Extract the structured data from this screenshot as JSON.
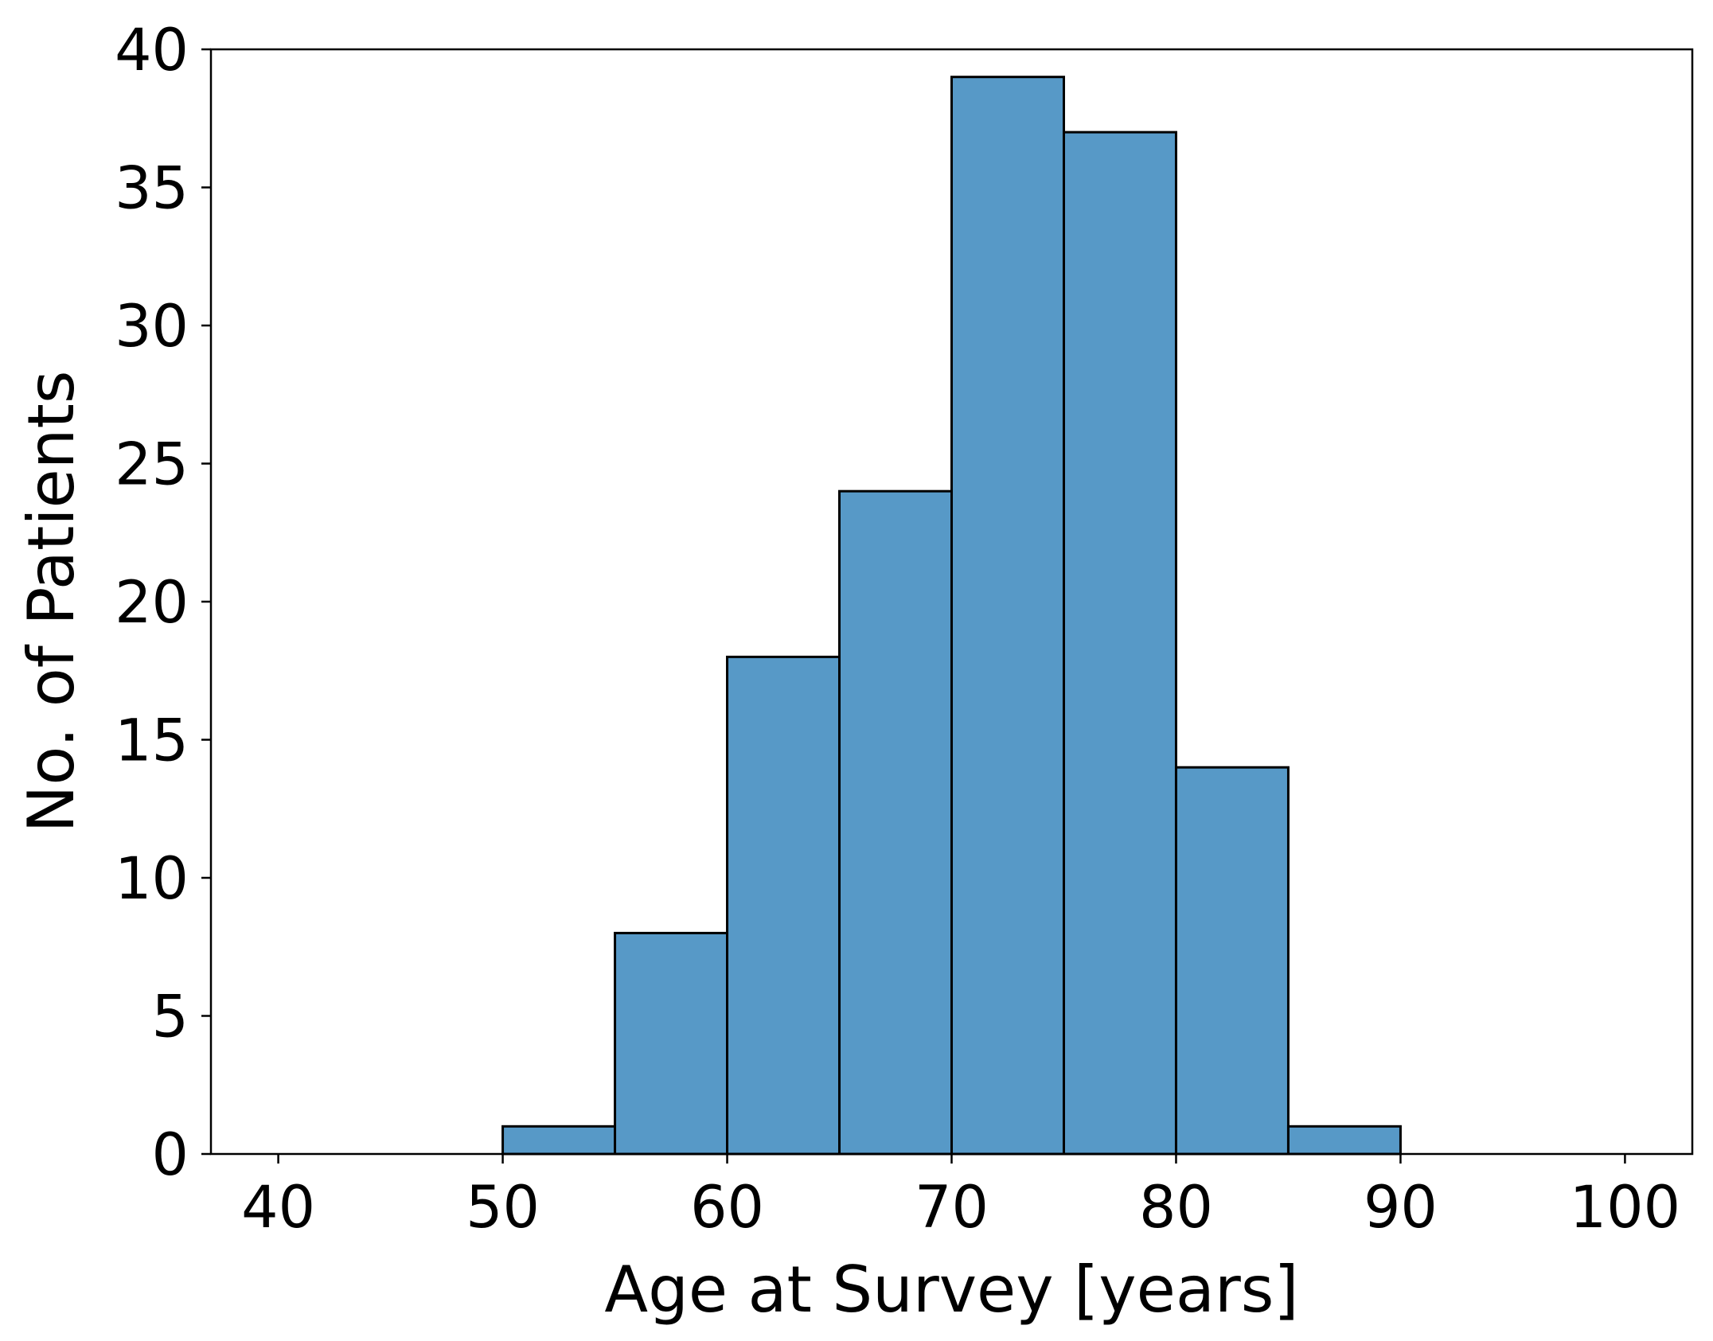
{
  "chart_data": {
    "type": "bar",
    "title": "",
    "xlabel": "Age at Survey [years]",
    "ylabel": "No. of Patients",
    "bins": [
      {
        "start": 50,
        "end": 55,
        "count": 1
      },
      {
        "start": 55,
        "end": 60,
        "count": 8
      },
      {
        "start": 60,
        "end": 65,
        "count": 18
      },
      {
        "start": 65,
        "end": 70,
        "count": 24
      },
      {
        "start": 70,
        "end": 75,
        "count": 39
      },
      {
        "start": 75,
        "end": 80,
        "count": 37
      },
      {
        "start": 80,
        "end": 85,
        "count": 14
      },
      {
        "start": 85,
        "end": 90,
        "count": 1
      }
    ],
    "xlim": [
      37,
      103
    ],
    "ylim": [
      0,
      40
    ],
    "xticks": [
      "40",
      "50",
      "60",
      "70",
      "80",
      "90",
      "100"
    ],
    "yticks": [
      "0",
      "5",
      "10",
      "15",
      "20",
      "25",
      "30",
      "35",
      "40"
    ],
    "grid": false,
    "colors": {
      "bar_fill": "#5799c7",
      "bar_edge": "#000000",
      "axis": "#000000"
    }
  }
}
